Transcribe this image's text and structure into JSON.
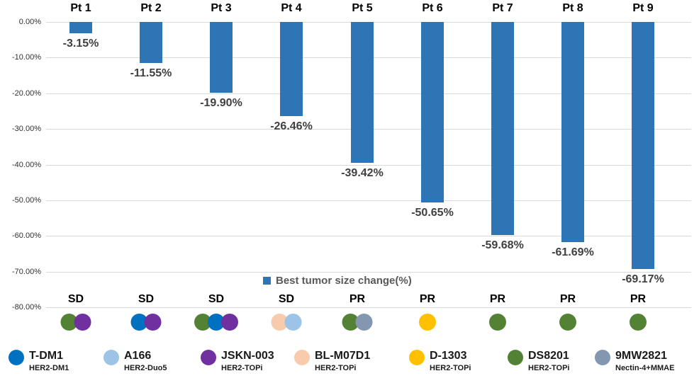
{
  "chart_data": {
    "type": "bar",
    "title": "",
    "series_label": "Best tumor size change(%)",
    "categories": [
      "Pt 1",
      "Pt 2",
      "Pt 3",
      "Pt 4",
      "Pt 5",
      "Pt 6",
      "Pt 7",
      "Pt 8",
      "Pt 9"
    ],
    "values": [
      -3.15,
      -11.55,
      -19.9,
      -26.46,
      -39.42,
      -50.65,
      -59.68,
      -61.69,
      -69.17
    ],
    "value_labels": [
      "-3.15%",
      "-11.55%",
      "-19.90%",
      "-26.46%",
      "-39.42%",
      "-50.65%",
      "-59.68%",
      "-61.69%",
      "-69.17%"
    ],
    "responses": [
      "SD",
      "SD",
      "SD",
      "SD",
      "PR",
      "PR",
      "PR",
      "PR",
      "PR"
    ],
    "treatments_per_patient": [
      [
        "DS8201",
        "JSKN-003"
      ],
      [
        "T-DM1",
        "JSKN-003"
      ],
      [
        "DS8201",
        "T-DM1",
        "JSKN-003"
      ],
      [
        "BL-M07D1",
        "A166"
      ],
      [
        "DS8201",
        "9MW2821"
      ],
      [
        "D-1303"
      ],
      [
        "DS8201"
      ],
      [
        "DS8201"
      ],
      [
        "DS8201"
      ]
    ],
    "ylim": [
      -80,
      0
    ],
    "ytick_labels": [
      "0.00%",
      "-10.00%",
      "-20.00%",
      "-30.00%",
      "-40.00%",
      "-50.00%",
      "-60.00%",
      "-70.00%",
      "-80.00%"
    ],
    "grid": true,
    "legend_position": "bottom",
    "bar_color": "#2E75B6",
    "gridline_color": "#D9D9D9"
  },
  "drug_legend": [
    {
      "name": "T-DM1",
      "mechanism": "HER2-DM1",
      "color": "#0070C0"
    },
    {
      "name": "A166",
      "mechanism": "HER2-Duo5",
      "color": "#9DC3E6"
    },
    {
      "name": "JSKN-003",
      "mechanism": "HER2-TOPi",
      "color": "#7030A0"
    },
    {
      "name": "BL-M07D1",
      "mechanism": "HER2-TOPi",
      "color": "#F8CBAD"
    },
    {
      "name": "D-1303",
      "mechanism": "HER2-TOPi",
      "color": "#FFC000"
    },
    {
      "name": "DS8201",
      "mechanism": "HER2-TOPi",
      "color": "#548235"
    },
    {
      "name": "9MW2821",
      "mechanism": "Nectin-4+MMAE",
      "color": "#8497B0"
    }
  ]
}
